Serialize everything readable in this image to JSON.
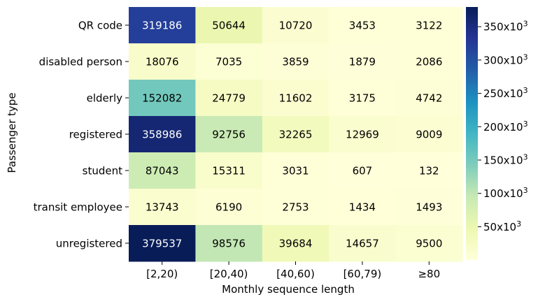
{
  "chart_data": {
    "type": "heatmap",
    "xlabel": "Monthly sequence length",
    "ylabel": "Passenger type",
    "x_categories": [
      "[2,20)",
      "[20,40)",
      "[40,60)",
      "[60,79)",
      "≥80"
    ],
    "y_categories": [
      "QR code",
      "disabled person",
      "elderly",
      "registered",
      "student",
      "transit employee",
      "unregistered"
    ],
    "values": [
      [
        319186,
        50644,
        10720,
        3453,
        3122
      ],
      [
        18076,
        7035,
        3859,
        1879,
        2086
      ],
      [
        152082,
        24779,
        11602,
        3175,
        4742
      ],
      [
        358986,
        92756,
        32265,
        12969,
        9009
      ],
      [
        87043,
        15311,
        3031,
        607,
        132
      ],
      [
        13743,
        6190,
        2753,
        1434,
        1493
      ],
      [
        379537,
        98576,
        39684,
        14657,
        9500
      ]
    ],
    "colorbar": {
      "min": 132,
      "max": 379537,
      "colormap": "YlGnBu",
      "ticks": [
        {
          "value": 50000,
          "label": "50x10",
          "exp": "3"
        },
        {
          "value": 100000,
          "label": "100x10",
          "exp": "3"
        },
        {
          "value": 150000,
          "label": "150x10",
          "exp": "3"
        },
        {
          "value": 200000,
          "label": "200x10",
          "exp": "3"
        },
        {
          "value": 250000,
          "label": "250x10",
          "exp": "3"
        },
        {
          "value": 300000,
          "label": "300x10",
          "exp": "3"
        },
        {
          "value": 350000,
          "label": "350x10",
          "exp": "3"
        }
      ]
    }
  }
}
